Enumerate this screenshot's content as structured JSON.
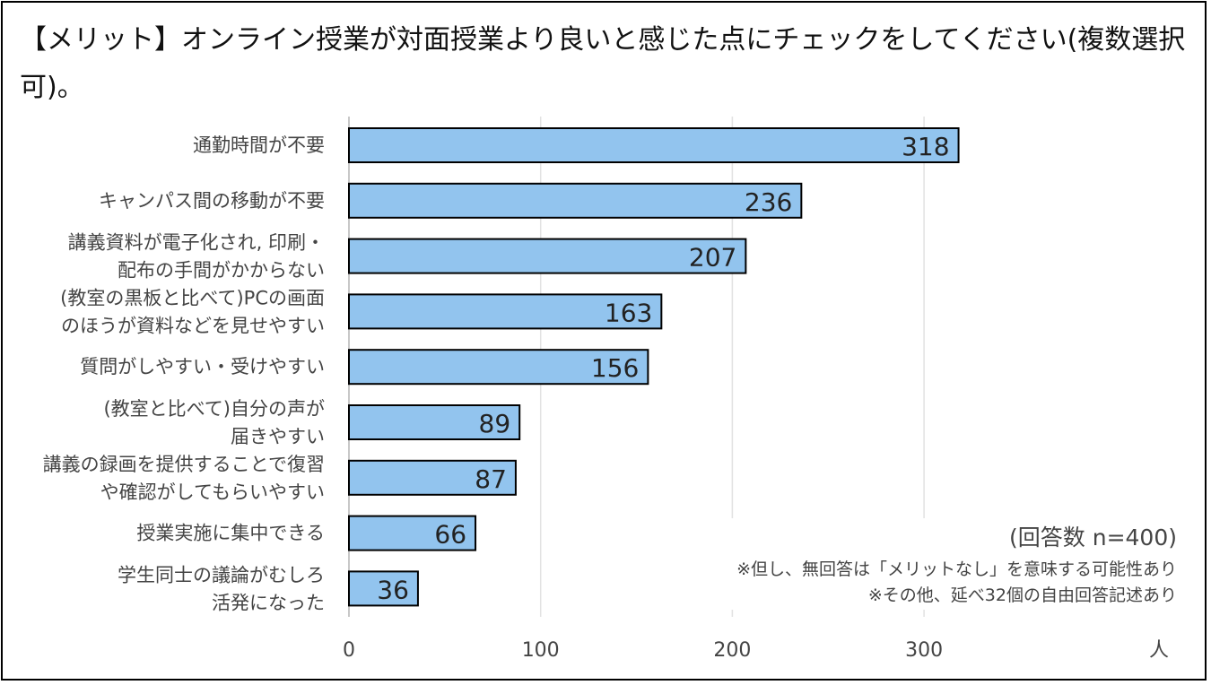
{
  "chart_data": {
    "type": "bar",
    "orientation": "horizontal",
    "title": "【メリット】オンライン授業が対面授業より良いと感じた点にチェックをしてください(複数選択可)。",
    "categories": [
      [
        "通勤時間が不要"
      ],
      [
        "キャンパス間の移動が不要"
      ],
      [
        "講義資料が電子化され, 印刷・",
        "配布の手間がかからない"
      ],
      [
        "(教室の黒板と比べて)PCの画面",
        "のほうが資料などを見せやすい"
      ],
      [
        "質問がしやすい・受けやすい"
      ],
      [
        "(教室と比べて)自分の声が",
        "届きやすい"
      ],
      [
        "講義の録画を提供することで復習",
        "や確認がしてもらいやすい"
      ],
      [
        "授業実施に集中できる"
      ],
      [
        "学生同士の議論がむしろ",
        "活発になった"
      ]
    ],
    "values": [
      318,
      236,
      207,
      163,
      156,
      89,
      87,
      66,
      36
    ],
    "xticks": [
      "0",
      "100",
      "200",
      "300"
    ],
    "xlim": [
      0,
      400
    ],
    "xlabel": "人",
    "grid": true,
    "bar_color": "#92C4EE",
    "bar_edge_color": "#000000",
    "annotations": [
      "(回答数 n=400)",
      "※但し、無回答は「メリットなし」を意味する可能性あり",
      "※その他、延べ32個の自由回答記述あり"
    ]
  }
}
